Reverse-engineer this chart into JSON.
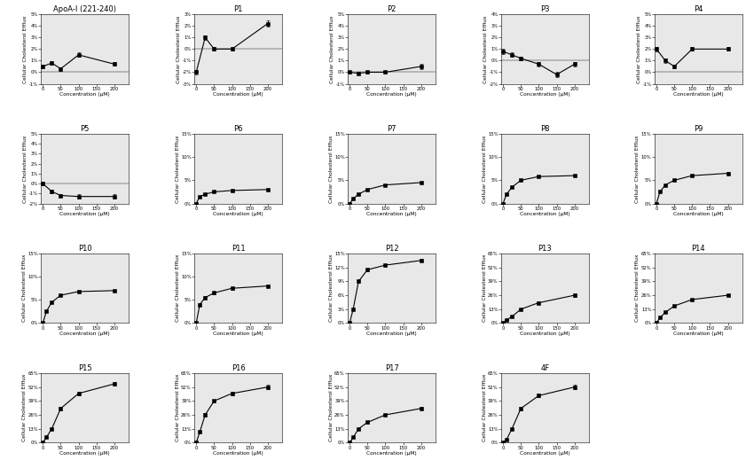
{
  "subplots": [
    {
      "title": "ApoA-I (221-240)",
      "x": [
        0,
        25,
        50,
        100,
        200
      ],
      "y": [
        0.5,
        0.8,
        0.3,
        1.5,
        0.7
      ],
      "yerr": [
        0.15,
        0.15,
        0.15,
        0.2,
        0.15
      ],
      "ylim": [
        -1,
        5
      ],
      "yticks": [
        -1,
        0,
        1,
        2,
        3,
        4,
        5
      ],
      "ytick_labels": [
        "-1%",
        "0%",
        "1%",
        "2%",
        "3%",
        "4%",
        "5%"
      ]
    },
    {
      "title": "P1",
      "x": [
        0,
        25,
        50,
        100,
        200
      ],
      "y": [
        -2.0,
        1.0,
        0.0,
        0.0,
        2.2
      ],
      "yerr": [
        0.2,
        0.2,
        0.15,
        0.15,
        0.25
      ],
      "ylim": [
        -3,
        3
      ],
      "yticks": [
        -3,
        -2,
        -1,
        0,
        1,
        2,
        3
      ],
      "ytick_labels": [
        "-3%",
        "-2%",
        "-1%",
        "0%",
        "1%",
        "2%",
        "3%"
      ]
    },
    {
      "title": "P2",
      "x": [
        0,
        25,
        50,
        100,
        200
      ],
      "y": [
        0.0,
        -0.1,
        0.0,
        0.0,
        0.5
      ],
      "yerr": [
        0.15,
        0.1,
        0.1,
        0.1,
        0.2
      ],
      "ylim": [
        -1,
        5
      ],
      "yticks": [
        -1,
        0,
        1,
        2,
        3,
        4,
        5
      ],
      "ytick_labels": [
        "-1%",
        "0%",
        "1%",
        "2%",
        "3%",
        "4%",
        "5%"
      ]
    },
    {
      "title": "P3",
      "x": [
        0,
        25,
        50,
        100,
        150,
        200
      ],
      "y": [
        0.8,
        0.5,
        0.2,
        -0.3,
        -1.2,
        -0.3
      ],
      "yerr": [
        0.2,
        0.2,
        0.15,
        0.2,
        0.2,
        0.2
      ],
      "ylim": [
        -2,
        4
      ],
      "yticks": [
        -2,
        -1,
        0,
        1,
        2,
        3,
        4
      ],
      "ytick_labels": [
        "-2%",
        "-1%",
        "0%",
        "1%",
        "2%",
        "3%",
        "4%"
      ]
    },
    {
      "title": "P4",
      "x": [
        0,
        25,
        50,
        100,
        200
      ],
      "y": [
        2.0,
        1.0,
        0.5,
        2.0,
        2.0
      ],
      "yerr": [
        0.2,
        0.2,
        0.15,
        0.15,
        0.15
      ],
      "ylim": [
        -1,
        5
      ],
      "yticks": [
        -1,
        0,
        1,
        2,
        3,
        4,
        5
      ],
      "ytick_labels": [
        "-1%",
        "0%",
        "1%",
        "2%",
        "3%",
        "4%",
        "5%"
      ]
    },
    {
      "title": "P5",
      "x": [
        0,
        25,
        50,
        100,
        200
      ],
      "y": [
        0.0,
        -0.8,
        -1.2,
        -1.3,
        -1.3
      ],
      "yerr": [
        0.15,
        0.15,
        0.15,
        0.2,
        0.2
      ],
      "ylim": [
        -2,
        5
      ],
      "yticks": [
        -2,
        -1,
        0,
        1,
        2,
        3,
        4,
        5
      ],
      "ytick_labels": [
        "-2%",
        "-1%",
        "0%",
        "1%",
        "2%",
        "3%",
        "4%",
        "5%"
      ]
    },
    {
      "title": "P6",
      "x": [
        0,
        10,
        25,
        50,
        100,
        200
      ],
      "y": [
        0.0,
        1.5,
        2.0,
        2.5,
        2.8,
        3.0
      ],
      "yerr": [
        0.1,
        0.15,
        0.15,
        0.15,
        0.15,
        0.2
      ],
      "ylim": [
        0,
        15
      ],
      "yticks": [
        0,
        5,
        10,
        15
      ],
      "ytick_labels": [
        "0%",
        "5%",
        "10%",
        "15%"
      ]
    },
    {
      "title": "P7",
      "x": [
        0,
        10,
        25,
        50,
        100,
        200
      ],
      "y": [
        0.0,
        1.0,
        2.0,
        3.0,
        4.0,
        4.5
      ],
      "yerr": [
        0.1,
        0.15,
        0.15,
        0.2,
        0.2,
        0.2
      ],
      "ylim": [
        0,
        15
      ],
      "yticks": [
        0,
        5,
        10,
        15
      ],
      "ytick_labels": [
        "0%",
        "5%",
        "10%",
        "15%"
      ]
    },
    {
      "title": "P8",
      "x": [
        0,
        10,
        25,
        50,
        100,
        200
      ],
      "y": [
        0.0,
        2.0,
        3.5,
        5.0,
        5.8,
        6.0
      ],
      "yerr": [
        0.1,
        0.2,
        0.2,
        0.2,
        0.2,
        0.2
      ],
      "ylim": [
        0,
        15
      ],
      "yticks": [
        0,
        5,
        10,
        15
      ],
      "ytick_labels": [
        "0%",
        "5%",
        "10%",
        "15%"
      ]
    },
    {
      "title": "P9",
      "x": [
        0,
        10,
        25,
        50,
        100,
        200
      ],
      "y": [
        0.0,
        2.5,
        4.0,
        5.0,
        6.0,
        6.5
      ],
      "yerr": [
        0.1,
        0.2,
        0.2,
        0.2,
        0.2,
        0.2
      ],
      "ylim": [
        0,
        15
      ],
      "yticks": [
        0,
        5,
        10,
        15
      ],
      "ytick_labels": [
        "0%",
        "5%",
        "10%",
        "15%"
      ]
    },
    {
      "title": "P10",
      "x": [
        0,
        10,
        25,
        50,
        100,
        200
      ],
      "y": [
        0.0,
        2.5,
        4.5,
        6.0,
        6.8,
        7.0
      ],
      "yerr": [
        0.1,
        0.2,
        0.2,
        0.2,
        0.2,
        0.2
      ],
      "ylim": [
        0,
        15
      ],
      "yticks": [
        0,
        5,
        10,
        15
      ],
      "ytick_labels": [
        "0%",
        "5%",
        "10%",
        "15%"
      ]
    },
    {
      "title": "P11",
      "x": [
        0,
        10,
        25,
        50,
        100,
        200
      ],
      "y": [
        0.0,
        4.0,
        5.5,
        6.5,
        7.5,
        8.0
      ],
      "yerr": [
        0.1,
        0.25,
        0.25,
        0.25,
        0.25,
        0.25
      ],
      "ylim": [
        0,
        15
      ],
      "yticks": [
        0,
        5,
        10,
        15
      ],
      "ytick_labels": [
        "0%",
        "5%",
        "10%",
        "15%"
      ]
    },
    {
      "title": "P12",
      "x": [
        0,
        10,
        25,
        50,
        100,
        200
      ],
      "y": [
        0.0,
        3.0,
        9.0,
        11.5,
        12.5,
        13.5
      ],
      "yerr": [
        0.1,
        0.3,
        0.3,
        0.3,
        0.3,
        0.3
      ],
      "ylim": [
        0,
        15
      ],
      "yticks": [
        0,
        3,
        6,
        9,
        12,
        15
      ],
      "ytick_labels": [
        "0%",
        "3%",
        "6%",
        "9%",
        "12%",
        "15%"
      ]
    },
    {
      "title": "P13",
      "x": [
        0,
        10,
        25,
        50,
        100,
        200
      ],
      "y": [
        0.0,
        3.0,
        6.0,
        13.0,
        19.0,
        26.0
      ],
      "yerr": [
        0.5,
        0.5,
        0.5,
        1.0,
        1.0,
        1.5
      ],
      "ylim": [
        0,
        65
      ],
      "yticks": [
        0,
        13,
        26,
        39,
        52,
        65
      ],
      "ytick_labels": [
        "0%",
        "13%",
        "26%",
        "39%",
        "52%",
        "65%"
      ]
    },
    {
      "title": "P14",
      "x": [
        0,
        10,
        25,
        50,
        100,
        200
      ],
      "y": [
        0.0,
        5.0,
        10.0,
        16.0,
        22.0,
        26.0
      ],
      "yerr": [
        0.5,
        0.5,
        0.5,
        0.8,
        0.8,
        1.0
      ],
      "ylim": [
        0,
        65
      ],
      "yticks": [
        0,
        13,
        26,
        39,
        52,
        65
      ],
      "ytick_labels": [
        "0%",
        "13%",
        "26%",
        "39%",
        "52%",
        "65%"
      ]
    },
    {
      "title": "P15",
      "x": [
        0,
        10,
        25,
        50,
        100,
        200
      ],
      "y": [
        0.0,
        5.0,
        13.0,
        32.0,
        46.0,
        55.0
      ],
      "yerr": [
        0.5,
        0.5,
        1.0,
        1.5,
        1.5,
        2.0
      ],
      "ylim": [
        0,
        65
      ],
      "yticks": [
        0,
        13,
        26,
        39,
        52,
        65
      ],
      "ytick_labels": [
        "0%",
        "13%",
        "26%",
        "39%",
        "52%",
        "65%"
      ]
    },
    {
      "title": "P16",
      "x": [
        0,
        10,
        25,
        50,
        100,
        200
      ],
      "y": [
        0.0,
        10.0,
        26.0,
        39.0,
        46.0,
        52.0
      ],
      "yerr": [
        0.5,
        0.8,
        1.5,
        1.5,
        1.5,
        2.0
      ],
      "ylim": [
        0,
        65
      ],
      "yticks": [
        0,
        13,
        26,
        39,
        52,
        65
      ],
      "ytick_labels": [
        "0%",
        "13%",
        "26%",
        "39%",
        "52%",
        "65%"
      ]
    },
    {
      "title": "P17",
      "x": [
        0,
        10,
        25,
        50,
        100,
        200
      ],
      "y": [
        0.0,
        5.0,
        13.0,
        19.0,
        26.0,
        32.0
      ],
      "yerr": [
        0.5,
        0.5,
        1.0,
        1.0,
        1.2,
        1.2
      ],
      "ylim": [
        0,
        65
      ],
      "yticks": [
        0,
        13,
        26,
        39,
        52,
        65
      ],
      "ytick_labels": [
        "0%",
        "13%",
        "26%",
        "39%",
        "52%",
        "65%"
      ]
    },
    {
      "title": "4F",
      "x": [
        0,
        10,
        25,
        50,
        100,
        200
      ],
      "y": [
        0.0,
        3.0,
        13.0,
        32.0,
        44.0,
        52.0
      ],
      "yerr": [
        0.5,
        0.5,
        1.0,
        1.5,
        1.5,
        2.0
      ],
      "ylim": [
        0,
        65
      ],
      "yticks": [
        0,
        13,
        26,
        39,
        52,
        65
      ],
      "ytick_labels": [
        "0%",
        "13%",
        "26%",
        "39%",
        "52%",
        "65%"
      ]
    }
  ],
  "xlabel": "Concentration (μM)",
  "ylabel": "Cellular Cholesterol Efflux",
  "xticks": [
    0,
    50,
    100,
    150,
    200
  ],
  "line_color": "black",
  "marker": "s",
  "markersize": 2.5,
  "linewidth": 0.8,
  "capsize": 1.5,
  "elinewidth": 0.6,
  "bg_color": "#e8e8e8",
  "fig_bg": "#ffffff",
  "title_fontsize": 6.0,
  "label_fontsize": 4.2,
  "tick_fontsize": 3.8
}
